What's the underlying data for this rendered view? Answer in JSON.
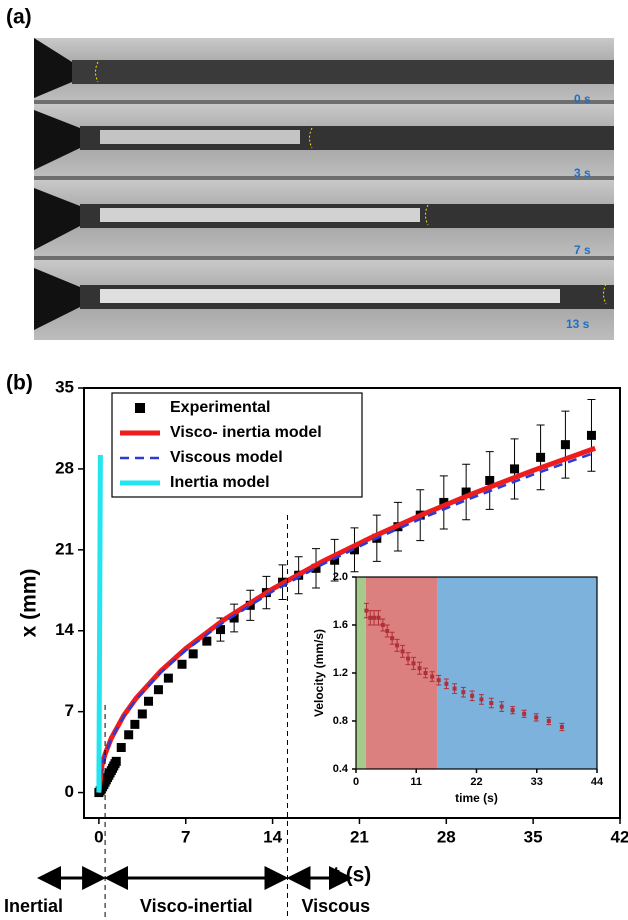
{
  "panel_a": {
    "label": "(a)",
    "frames": [
      "0 s",
      "3 s",
      "7 s",
      "13 s"
    ]
  },
  "panel_b_label": "(b)",
  "regimes": [
    "Inertial",
    "Visco-inertial",
    "Viscous"
  ],
  "chart_data": [
    {
      "type": "line",
      "xlabel": "t (s)",
      "ylabel": "x (mm)",
      "xlim": [
        -1.2,
        42
      ],
      "ylim": [
        -2.2,
        35
      ],
      "xticks": [
        0,
        7,
        14,
        21,
        28,
        35,
        42
      ],
      "yticks": [
        0,
        7,
        14,
        21,
        28,
        35
      ],
      "regime_boundaries": [
        0.5,
        15.2
      ],
      "series": [
        {
          "name": "Experimental",
          "style": "markers",
          "color": "#000000",
          "x": [
            0,
            0.1,
            0.2,
            0.3,
            0.4,
            0.5,
            0.6,
            0.7,
            0.8,
            0.9,
            1.0,
            1.1,
            1.2,
            1.3,
            1.4,
            1.8,
            2.4,
            2.9,
            3.5,
            4.0,
            4.8,
            5.6,
            6.7,
            7.6,
            8.7,
            9.8,
            10.9,
            12.2,
            13.5,
            14.8,
            16.1,
            17.5,
            19.0,
            20.6,
            22.4,
            24.1,
            25.9,
            27.8,
            29.6,
            31.5,
            33.5,
            35.6,
            37.6,
            39.7
          ],
          "values": [
            0,
            0.15,
            0.3,
            0.5,
            0.7,
            0.9,
            1.1,
            1.3,
            1.5,
            1.7,
            1.9,
            2.1,
            2.3,
            2.5,
            2.7,
            3.9,
            5.0,
            5.9,
            6.8,
            7.9,
            8.9,
            9.9,
            11.1,
            12.0,
            13.1,
            14.1,
            15.1,
            16.2,
            17.3,
            18.2,
            18.8,
            19.4,
            20.1,
            21.0,
            22.0,
            23.0,
            24.0,
            25.1,
            26.0,
            27.0,
            28.0,
            29.0,
            30.1,
            30.9
          ],
          "errors": [
            null,
            null,
            null,
            null,
            null,
            null,
            null,
            null,
            null,
            null,
            null,
            null,
            null,
            null,
            null,
            null,
            null,
            null,
            null,
            null,
            null,
            null,
            null,
            null,
            null,
            1.0,
            1.2,
            1.3,
            1.4,
            1.5,
            1.6,
            1.7,
            1.8,
            1.9,
            2.0,
            2.1,
            2.2,
            2.3,
            2.4,
            2.5,
            2.6,
            2.8,
            2.9,
            3.1
          ]
        },
        {
          "name": "Visco- inertia model",
          "style": "line",
          "color": "#ee1c1c",
          "width": 5,
          "x": [
            0,
            0.25,
            0.5,
            1,
            2,
            3,
            5,
            7,
            10,
            14,
            18,
            22,
            26,
            30,
            35,
            40
          ],
          "values": [
            0,
            2.36,
            3.33,
            4.71,
            6.66,
            8.16,
            10.53,
            12.46,
            14.89,
            17.62,
            19.98,
            22.09,
            24.02,
            25.8,
            27.87,
            29.79
          ]
        },
        {
          "name": "Viscous model",
          "style": "line",
          "dash": true,
          "color": "#2a3bd6",
          "width": 2.5,
          "x": [
            0,
            0.25,
            0.5,
            1,
            2,
            3,
            5,
            7,
            10,
            14,
            18,
            22,
            26,
            30,
            35,
            40
          ],
          "values": [
            0,
            2.33,
            3.29,
            4.65,
            6.58,
            8.05,
            10.4,
            12.3,
            14.7,
            17.4,
            19.73,
            21.81,
            23.71,
            25.47,
            27.51,
            29.41
          ]
        },
        {
          "name": "Inertia model",
          "style": "line",
          "color": "#22e5f0",
          "width": 5,
          "x": [
            0,
            0.12
          ],
          "values": [
            0,
            29.2
          ]
        }
      ]
    },
    {
      "type": "scatter",
      "xlabel": "time (s)",
      "ylabel": "Velocity (mm/s)",
      "xlim": [
        0,
        44
      ],
      "ylim": [
        0.4,
        2.0
      ],
      "xticks": [
        0,
        11,
        22,
        33,
        44
      ],
      "yticks": [
        0.4,
        0.8,
        1.2,
        1.6,
        {
          "value": 2,
          "label": "2.0"
        }
      ],
      "regions": [
        {
          "xmin": 0,
          "xmax": 1.8,
          "color": "#a6c98c"
        },
        {
          "xmin": 1.8,
          "xmax": 14.8,
          "color": "#dc7f7f"
        },
        {
          "xmin": 14.8,
          "xmax": 44,
          "color": "#7cb2dc"
        }
      ],
      "series": [
        {
          "style": "markers",
          "color": "#b0303a",
          "x": [
            1.9,
            2.6,
            3.3,
            4.1,
            4.9,
            5.7,
            6.6,
            7.5,
            8.5,
            9.5,
            10.5,
            11.6,
            12.7,
            13.9,
            15.1,
            16.5,
            18.0,
            19.6,
            21.2,
            22.9,
            24.7,
            26.6,
            28.6,
            30.7,
            32.9,
            35.2,
            37.6
          ],
          "values": [
            1.72,
            1.66,
            1.66,
            1.66,
            1.6,
            1.55,
            1.49,
            1.43,
            1.38,
            1.32,
            1.28,
            1.24,
            1.2,
            1.17,
            1.14,
            1.11,
            1.07,
            1.04,
            1.01,
            0.98,
            0.95,
            0.92,
            0.89,
            0.86,
            0.83,
            0.8,
            0.75
          ],
          "errors": [
            0.06,
            0.06,
            0.06,
            0.06,
            0.05,
            0.05,
            0.05,
            0.05,
            0.05,
            0.05,
            0.05,
            0.05,
            0.04,
            0.04,
            0.04,
            0.04,
            0.04,
            0.04,
            0.04,
            0.04,
            0.04,
            0.04,
            0.03,
            0.03,
            0.03,
            0.03,
            0.03
          ]
        }
      ]
    }
  ]
}
